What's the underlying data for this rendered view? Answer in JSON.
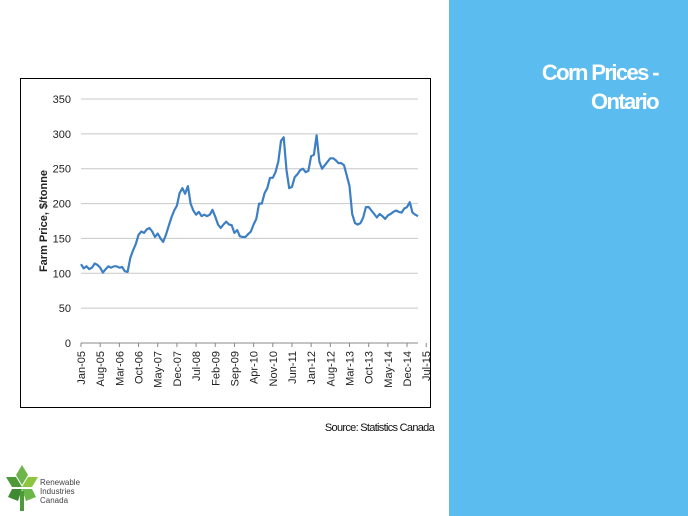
{
  "slide": {
    "title_line1": "Corn Prices -",
    "title_line2": "Ontario",
    "source": "Source: Statistics Canada"
  },
  "logo": {
    "line1": "Renewable",
    "line2": "Industries",
    "line3": "Canada"
  },
  "colors": {
    "panel": "#5bbcf0",
    "series_line": "#3d7fc4",
    "logo_green": "#6bb54a"
  },
  "chart_data": {
    "type": "line",
    "title": "",
    "xlabel": "",
    "ylabel": "Farm Price, $/tonne",
    "ylim": [
      0,
      350
    ],
    "yticks": [
      0,
      50,
      100,
      150,
      200,
      250,
      300,
      350
    ],
    "grid": "horizontal",
    "legend": "none",
    "xtick_labels": [
      "Jan-05",
      "Aug-05",
      "Mar-06",
      "Oct-06",
      "May-07",
      "Dec-07",
      "Jul-08",
      "Feb-09",
      "Sep-09",
      "Apr-10",
      "Nov-10",
      "Jun-11",
      "Jan-12",
      "Aug-12",
      "Mar-13",
      "Oct-13",
      "May-14",
      "Dec-14",
      "Jul-15"
    ],
    "series": [
      {
        "values": [
          113,
          107,
          110,
          106,
          108,
          114,
          112,
          108,
          101,
          106,
          110,
          108,
          110,
          110,
          108,
          109,
          103,
          102,
          122,
          133,
          142,
          155,
          160,
          158,
          163,
          165,
          160,
          152,
          157,
          150,
          145,
          155,
          168,
          180,
          190,
          197,
          215,
          222,
          214,
          225,
          200,
          190,
          184,
          188,
          182,
          184,
          182,
          184,
          191,
          181,
          170,
          165,
          170,
          174,
          170,
          169,
          158,
          162,
          153,
          152,
          152,
          156,
          160,
          170,
          178,
          200,
          200,
          215,
          222,
          237,
          237,
          245,
          260,
          290,
          295,
          248,
          222,
          224,
          238,
          242,
          248,
          250,
          245,
          247,
          268,
          270,
          298,
          260,
          250,
          255,
          260,
          265,
          265,
          262,
          258,
          258,
          255,
          240,
          225,
          185,
          172,
          170,
          172,
          180,
          195,
          195,
          190,
          185,
          180,
          185,
          182,
          178,
          183,
          185,
          188,
          190,
          188,
          187,
          193,
          195,
          202,
          187,
          184,
          182
        ]
      }
    ]
  }
}
